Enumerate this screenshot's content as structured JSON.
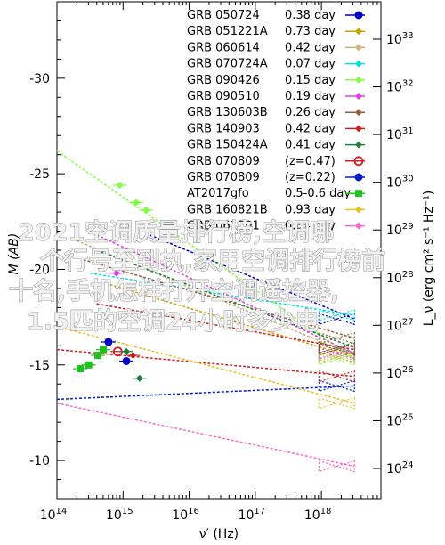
{
  "chart_data": {
    "type": "scatter",
    "xlabel": "ν′ (Hz)",
    "ylabel_left": "M (AB)",
    "ylabel_right": "L_ν (erg cm² s⁻¹ Hz⁻¹)",
    "x_log_range": [
      14,
      18.9
    ],
    "ylim_left": [
      -8,
      -34
    ],
    "x_ticks": [
      {
        "exp": 14,
        "label": "10",
        "sup": "14"
      },
      {
        "exp": 15,
        "label": "10",
        "sup": "15"
      },
      {
        "exp": 16,
        "label": "10",
        "sup": "16"
      },
      {
        "exp": 17,
        "label": "10",
        "sup": "17"
      },
      {
        "exp": 18,
        "label": "10",
        "sup": "18"
      }
    ],
    "y_left_ticks": [
      {
        "value": -30,
        "label": "-30"
      },
      {
        "value": -25,
        "label": "-25"
      },
      {
        "value": -20,
        "label": "-20"
      },
      {
        "value": -15,
        "label": "-15"
      },
      {
        "value": -10,
        "label": "-10"
      }
    ],
    "y_right_ticks": [
      {
        "value": 33,
        "label": "10",
        "sup": "33"
      },
      {
        "value": 32,
        "label": "10",
        "sup": "32"
      },
      {
        "value": 31,
        "label": "10",
        "sup": "31"
      },
      {
        "value": 30,
        "label": "10",
        "sup": "30"
      },
      {
        "value": 29,
        "label": "10",
        "sup": "29"
      },
      {
        "value": 28,
        "label": "10",
        "sup": "28"
      },
      {
        "value": 27,
        "label": "10",
        "sup": "27"
      },
      {
        "value": 26,
        "label": "10",
        "sup": "26"
      },
      {
        "value": 25,
        "label": "10",
        "sup": "25"
      },
      {
        "value": 24,
        "label": "10",
        "sup": "24"
      }
    ],
    "legend_position": "top-right",
    "series": [
      {
        "name": "GRB 050724",
        "value": "0.38 day",
        "color": "#0000cc",
        "marker": "circle",
        "line": [
          [
            15.4,
            -21.8
          ],
          [
            18.5,
            -17.4
          ]
        ]
      },
      {
        "name": "GRB 051221A",
        "value": "0.73 day",
        "color": "#c8a000",
        "marker": "diamond",
        "line": [
          [
            14.8,
            -19.2
          ],
          [
            18.5,
            -15.4
          ]
        ]
      },
      {
        "name": "GRB 060614",
        "value": "0.42 day",
        "color": "#c8b478",
        "marker": "diamond",
        "line": [
          [
            14.3,
            -21.5
          ],
          [
            18.5,
            -15.5
          ]
        ]
      },
      {
        "name": "GRB 070724A",
        "value": "0.07 day",
        "color": "#00e0e0",
        "marker": "diamond",
        "line": [
          [
            14.5,
            -19.8
          ],
          [
            18.5,
            -17.6
          ]
        ]
      },
      {
        "name": "GRB 090426",
        "value": "0.15 day",
        "color": "#80ff40",
        "marker": "diamond",
        "line": [
          [
            14.0,
            -26.2
          ],
          [
            18.5,
            -15.3
          ]
        ]
      },
      {
        "name": "GRB 090510",
        "value": "0.19 day",
        "color": "#e040e0",
        "marker": "diamond",
        "line": [
          [
            14.6,
            -21.8
          ],
          [
            18.5,
            -15.6
          ]
        ]
      },
      {
        "name": "GRB 130603B",
        "value": "0.26 day",
        "color": "#906040",
        "marker": "diamond",
        "line": [
          [
            14.4,
            -20.5
          ],
          [
            18.5,
            -16.4
          ]
        ]
      },
      {
        "name": "GRB 140903",
        "value": "0.42 day",
        "color": "#cc2020",
        "marker": "diamond",
        "line": [
          [
            14.6,
            -18.2
          ],
          [
            18.5,
            -15.8
          ]
        ]
      },
      {
        "name": "GRB 150424A",
        "value": "0.41 day",
        "color": "#208040",
        "marker": "diamond",
        "line": [
          [
            14.6,
            -21.0
          ],
          [
            18.5,
            -15.9
          ]
        ]
      },
      {
        "name": "GRB 070809",
        "value": "(z=0.47)",
        "color": "#cc2020",
        "marker": "open-circle",
        "line": [
          [
            14.0,
            -15.8
          ],
          [
            18.5,
            -14.4
          ]
        ]
      },
      {
        "name": "GRB 070809",
        "value": "(z=0.22)",
        "color": "#0020cc",
        "marker": "circle",
        "line": [
          [
            14.0,
            -13.2
          ],
          [
            18.5,
            -13.9
          ]
        ]
      },
      {
        "name": "AT2017gfo",
        "value": "0.5-0.6 day",
        "color": "#20c020",
        "marker": "square",
        "line": []
      },
      {
        "name": "GRB 160821B",
        "value": "0.93 day",
        "color": "#e8c020",
        "marker": "diamond",
        "line": [
          [
            14.0,
            -17.0
          ],
          [
            18.5,
            -13.0
          ]
        ]
      },
      {
        "name": "GRB 061201",
        "value": "0.34 day",
        "color": "#ff66cc",
        "marker": "diamond",
        "line": [
          [
            14.0,
            -13.0
          ],
          [
            18.5,
            -9.7
          ]
        ]
      }
    ],
    "points": [
      {
        "color": "#0000cc",
        "shape": "circle",
        "x": 14.78,
        "y": -16.2
      },
      {
        "color": "#0000cc",
        "shape": "circle",
        "x": 15.05,
        "y": -15.2
      },
      {
        "color": "#cc2020",
        "shape": "open-circle",
        "x": 14.92,
        "y": -15.7
      },
      {
        "color": "#20c020",
        "shape": "square",
        "x": 14.35,
        "y": -14.8
      },
      {
        "color": "#20c020",
        "shape": "square",
        "x": 14.48,
        "y": -15.0
      },
      {
        "color": "#20c020",
        "shape": "square",
        "x": 14.62,
        "y": -15.5
      },
      {
        "color": "#20c020",
        "shape": "square",
        "x": 14.7,
        "y": -15.8
      },
      {
        "color": "#80ff40",
        "shape": "diamond",
        "x": 14.95,
        "y": -24.4
      },
      {
        "color": "#80ff40",
        "shape": "diamond",
        "x": 15.2,
        "y": -23.5
      },
      {
        "color": "#80ff40",
        "shape": "diamond",
        "x": 15.35,
        "y": -23.1
      },
      {
        "color": "#e040e0",
        "shape": "diamond",
        "x": 14.9,
        "y": -19.8
      },
      {
        "color": "#208040",
        "shape": "diamond",
        "x": 15.05,
        "y": -15.7
      },
      {
        "color": "#cc2020",
        "shape": "diamond",
        "x": 15.15,
        "y": -15.5
      },
      {
        "color": "#208040",
        "shape": "diamond",
        "x": 15.25,
        "y": -14.3
      }
    ]
  },
  "overlay_text": [
    "2021空调质量排行榜,空调哪",
    "个行号至到执,家用空调排行榜前",
    "十名,手机怎样打开空调遥控器,",
    "1.5匹的空调24小时多少电"
  ]
}
